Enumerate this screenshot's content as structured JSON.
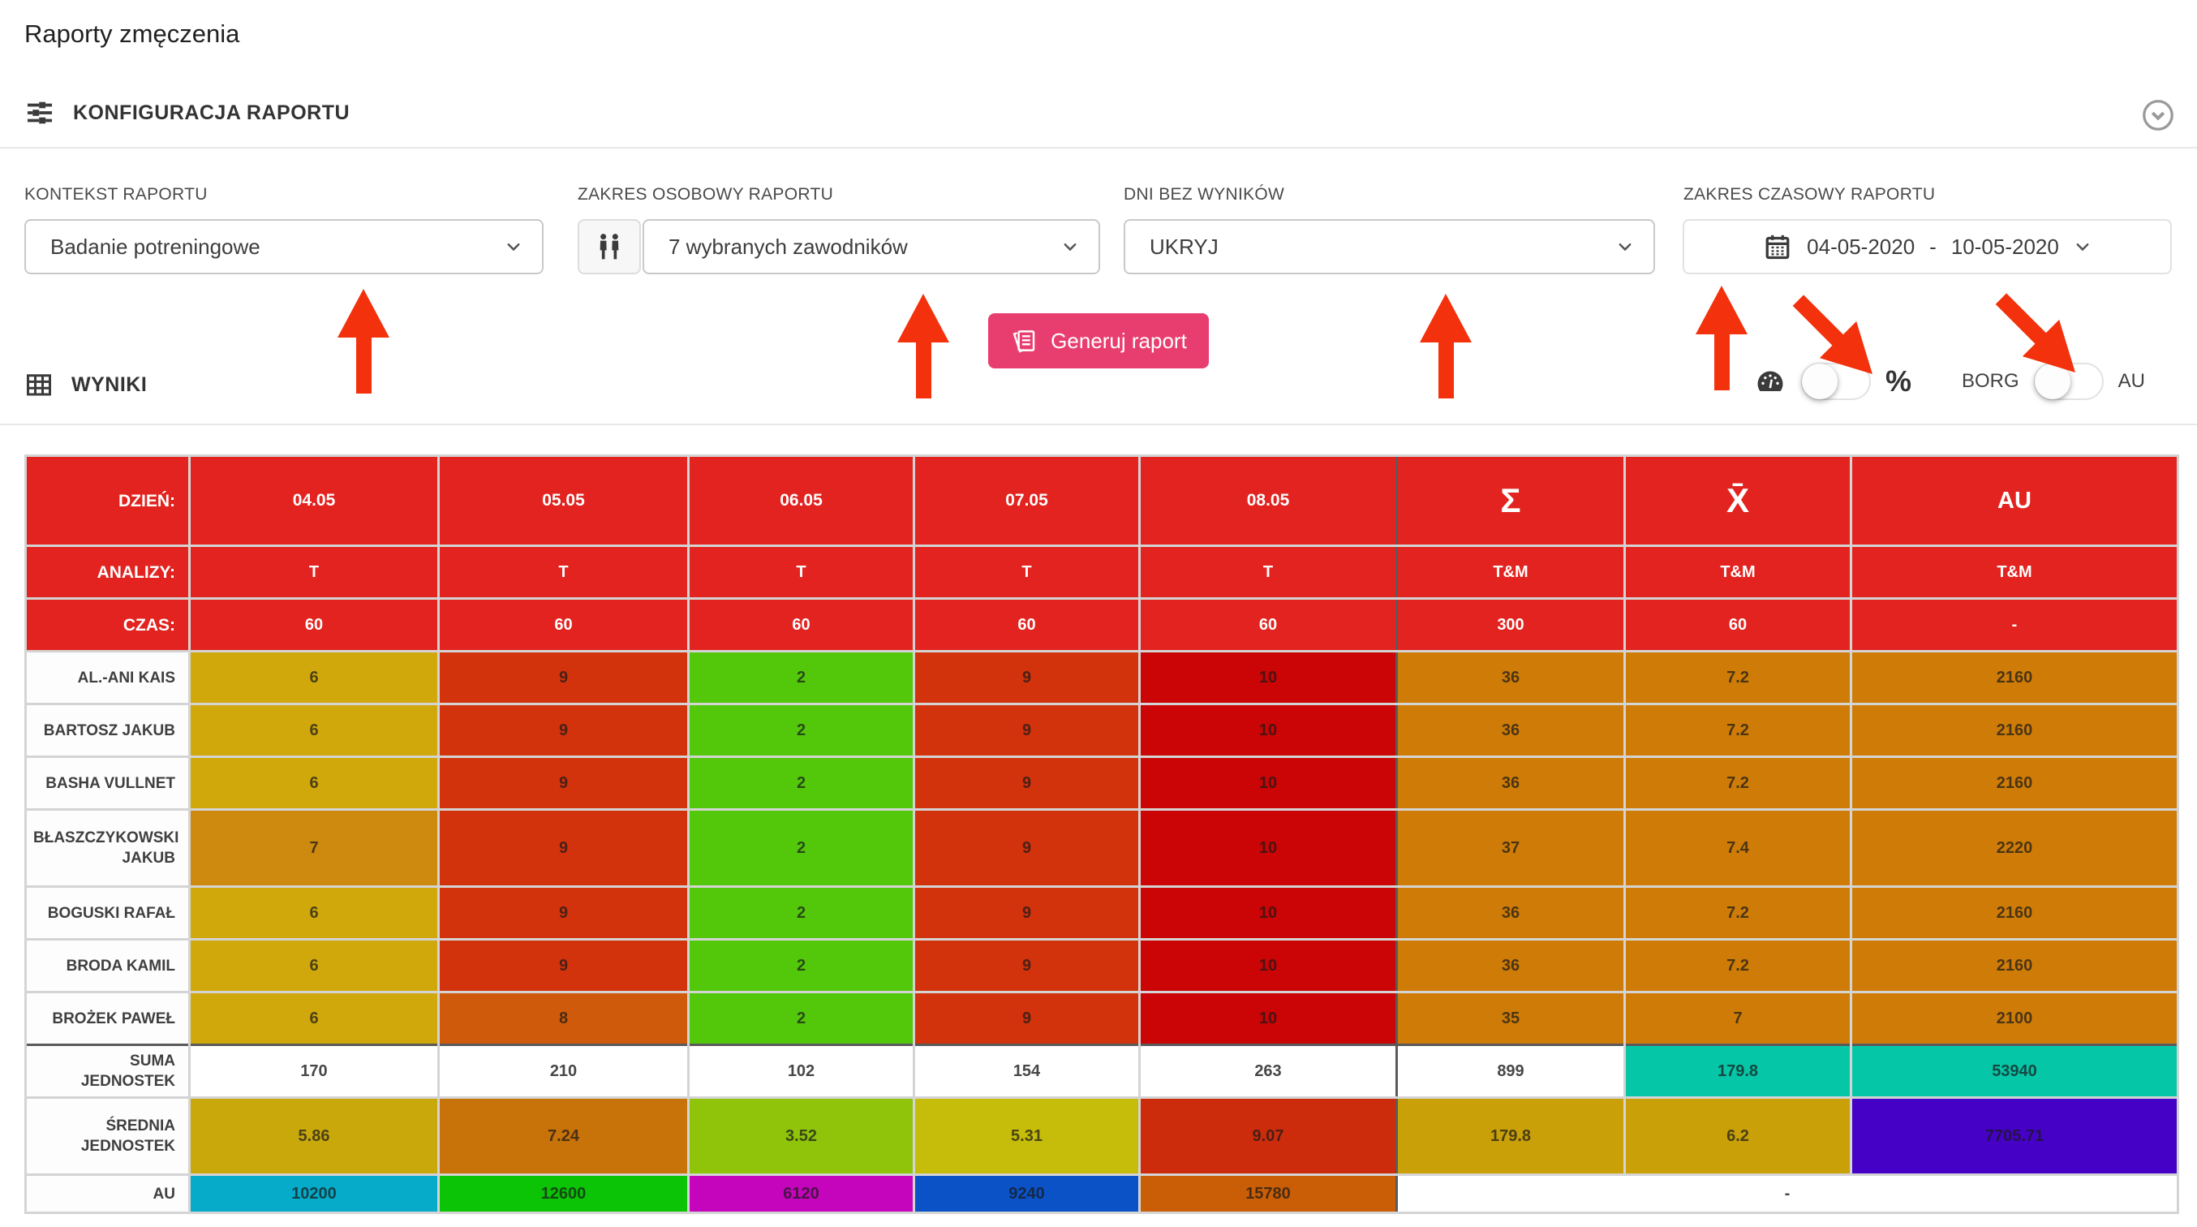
{
  "page": {
    "title": "Raporty zmęczenia"
  },
  "config": {
    "section_title": "KONFIGURACJA RAPORTU",
    "section_icon": "sliders-icon",
    "collapse_icon": "chevron-down-circle-icon",
    "filters": [
      {
        "label": "KONTEKST RAPORTU",
        "value": "Badanie potreningowe"
      },
      {
        "label": "ZAKRES OSOBOWY RAPORTU",
        "value": "7 wybranych zawodników",
        "icon": "people-icon"
      },
      {
        "label": "DNI BEZ WYNIKÓW",
        "value": "UKRYJ"
      },
      {
        "label": "ZAKRES CZASOWY RAPORTU",
        "icon": "calendar-icon",
        "date_from": "04-05-2020",
        "dash": "-",
        "date_to": "10-05-2020"
      }
    ],
    "generate_button": "Generuj raport",
    "generate_icon": "report-icon"
  },
  "results": {
    "section_title": "WYNIKI",
    "section_icon": "grid-icon",
    "toggles": [
      {
        "left": "gauge-icon",
        "right": "%",
        "state": "off"
      },
      {
        "left": "BORG",
        "right": "AU",
        "state": "off"
      }
    ]
  },
  "colors": {
    "accent_pink": "#E83E6F",
    "header_red": "#E2231F",
    "arrow_red": "#F3310D",
    "divider_dark": "#5A5A5A",
    "cell": {
      "gold": "#D0A80C",
      "amber": "#CE8A0E",
      "red": "#D2330D",
      "orangered": "#CF5A0C",
      "green": "#53C80B",
      "bright-red": "#CB0405",
      "orange": "#CE7C07",
      "white": "#FFFFFF",
      "teal": "#06C6A8",
      "avg-gold": "#C9A80B",
      "avg-orange": "#C8720A",
      "avg-yellowgreen": "#8FC40B",
      "avg-yellow": "#C6BC0A",
      "avg-redorange": "#CC2C0C",
      "avg-gold2": "#C9A008",
      "purple": "#4502C6",
      "cyan": "#05ABC9",
      "au-green": "#0AC405",
      "magenta": "#C405BC",
      "blue": "#0A52C6",
      "dark-orange": "#C95E06"
    }
  },
  "table": {
    "header_rows": [
      {
        "label": "DZIEŃ:",
        "cells": [
          [
            "04.05"
          ],
          [
            "05.05"
          ],
          [
            "06.05"
          ],
          [
            "07.05"
          ],
          [
            "08.05"
          ],
          [
            "Σ"
          ],
          [
            "X̄"
          ],
          [
            "AU"
          ]
        ]
      },
      {
        "label": "ANALIZY:",
        "cells": [
          [
            "T"
          ],
          [
            "T"
          ],
          [
            "T"
          ],
          [
            "T"
          ],
          [
            "T"
          ],
          [
            "T&M"
          ],
          [
            "T&M"
          ],
          [
            "T&M"
          ]
        ]
      },
      {
        "label": "CZAS:",
        "cells": [
          [
            "60"
          ],
          [
            "60"
          ],
          [
            "60"
          ],
          [
            "60"
          ],
          [
            "60"
          ],
          [
            "300"
          ],
          [
            "60"
          ],
          [
            "-"
          ]
        ]
      }
    ],
    "player_rows": [
      {
        "label": "AL.-ANI KAIS",
        "cells": [
          [
            "6",
            "gold"
          ],
          [
            "9",
            "red"
          ],
          [
            "2",
            "green"
          ],
          [
            "9",
            "red"
          ],
          [
            "10",
            "bright-red"
          ],
          [
            "36",
            "orange"
          ],
          [
            "7.2",
            "orange"
          ],
          [
            "2160",
            "orange"
          ]
        ]
      },
      {
        "label": "BARTOSZ JAKUB",
        "cells": [
          [
            "6",
            "gold"
          ],
          [
            "9",
            "red"
          ],
          [
            "2",
            "green"
          ],
          [
            "9",
            "red"
          ],
          [
            "10",
            "bright-red"
          ],
          [
            "36",
            "orange"
          ],
          [
            "7.2",
            "orange"
          ],
          [
            "2160",
            "orange"
          ]
        ]
      },
      {
        "label": "BASHA VULLNET",
        "cells": [
          [
            "6",
            "gold"
          ],
          [
            "9",
            "red"
          ],
          [
            "2",
            "green"
          ],
          [
            "9",
            "red"
          ],
          [
            "10",
            "bright-red"
          ],
          [
            "36",
            "orange"
          ],
          [
            "7.2",
            "orange"
          ],
          [
            "2160",
            "orange"
          ]
        ]
      },
      {
        "label": "BŁASZCZYKOWSKI JAKUB",
        "cells": [
          [
            "7",
            "amber"
          ],
          [
            "9",
            "red"
          ],
          [
            "2",
            "green"
          ],
          [
            "9",
            "red"
          ],
          [
            "10",
            "bright-red"
          ],
          [
            "37",
            "orange"
          ],
          [
            "7.4",
            "orange"
          ],
          [
            "2220",
            "orange"
          ]
        ]
      },
      {
        "label": "BOGUSKI RAFAŁ",
        "cells": [
          [
            "6",
            "gold"
          ],
          [
            "9",
            "red"
          ],
          [
            "2",
            "green"
          ],
          [
            "9",
            "red"
          ],
          [
            "10",
            "bright-red"
          ],
          [
            "36",
            "orange"
          ],
          [
            "7.2",
            "orange"
          ],
          [
            "2160",
            "orange"
          ]
        ]
      },
      {
        "label": "BRODA KAMIL",
        "cells": [
          [
            "6",
            "gold"
          ],
          [
            "9",
            "red"
          ],
          [
            "2",
            "green"
          ],
          [
            "9",
            "red"
          ],
          [
            "10",
            "bright-red"
          ],
          [
            "36",
            "orange"
          ],
          [
            "7.2",
            "orange"
          ],
          [
            "2160",
            "orange"
          ]
        ]
      },
      {
        "label": "BROŻEK PAWEŁ",
        "cells": [
          [
            "6",
            "gold"
          ],
          [
            "8",
            "orangered"
          ],
          [
            "2",
            "green"
          ],
          [
            "9",
            "red"
          ],
          [
            "10",
            "bright-red"
          ],
          [
            "35",
            "orange"
          ],
          [
            "7",
            "orange"
          ],
          [
            "2100",
            "orange"
          ]
        ]
      }
    ],
    "summary_rows": [
      {
        "label": "SUMA JEDNOSTEK",
        "cells": [
          [
            "170",
            "white"
          ],
          [
            "210",
            "white"
          ],
          [
            "102",
            "white"
          ],
          [
            "154",
            "white"
          ],
          [
            "263",
            "white"
          ],
          [
            "899",
            "white"
          ],
          [
            "179.8",
            "teal"
          ],
          [
            "53940",
            "teal"
          ]
        ]
      },
      {
        "label": "ŚREDNIA JEDNOSTEK",
        "cells": [
          [
            "5.86",
            "avg-gold"
          ],
          [
            "7.24",
            "avg-orange"
          ],
          [
            "3.52",
            "avg-yellowgreen"
          ],
          [
            "5.31",
            "avg-yellow"
          ],
          [
            "9.07",
            "avg-redorange"
          ],
          [
            "179.8",
            "avg-gold2"
          ],
          [
            "6.2",
            "avg-gold2"
          ],
          [
            "7705.71",
            "purple"
          ]
        ]
      },
      {
        "label": "AU",
        "cells": [
          [
            "10200",
            "cyan"
          ],
          [
            "12600",
            "au-green"
          ],
          [
            "6120",
            "magenta"
          ],
          [
            "9240",
            "blue"
          ],
          [
            "15780",
            "dark-orange"
          ],
          [
            "-",
            "white",
            3
          ]
        ]
      }
    ]
  }
}
